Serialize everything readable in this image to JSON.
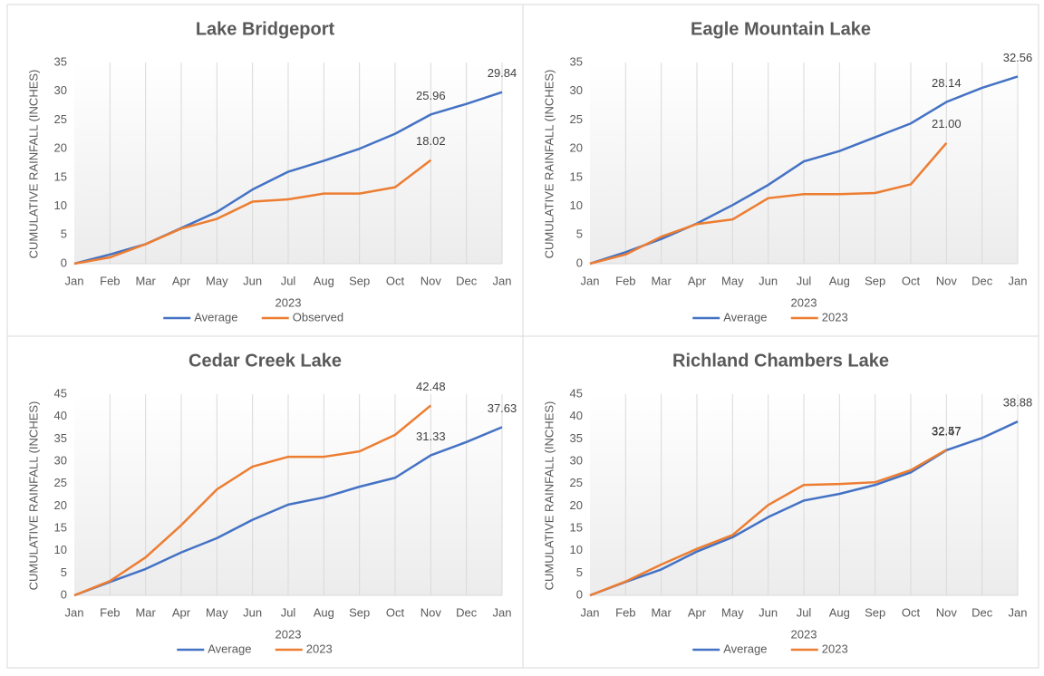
{
  "chart_data": [
    {
      "type": "line",
      "title": "Lake Bridgeport",
      "x_label": "2023",
      "y_label": "CUMULATIVE RAINFALL (INCHES)",
      "categories": [
        "Jan",
        "Feb",
        "Mar",
        "Apr",
        "May",
        "Jun",
        "Jul",
        "Aug",
        "Sep",
        "Oct",
        "Nov",
        "Dec",
        "Jan"
      ],
      "ylim": [
        0,
        35
      ],
      "yticks": [
        0,
        5,
        10,
        15,
        20,
        25,
        30,
        35
      ],
      "x_grid": true,
      "legend": "bottom",
      "series": [
        {
          "name": "Average",
          "color": "#4472c4",
          "values": [
            0,
            1.6,
            3.4,
            6.2,
            9.0,
            12.9,
            16.0,
            17.9,
            20.0,
            22.6,
            25.96,
            27.8,
            29.84
          ],
          "value_labels": [
            null,
            null,
            null,
            null,
            null,
            null,
            null,
            null,
            null,
            null,
            "25.96",
            null,
            "29.84"
          ]
        },
        {
          "name": "Observed",
          "color": "#ed7d31",
          "values": [
            0,
            1.1,
            3.4,
            6.1,
            7.8,
            10.8,
            11.2,
            12.2,
            12.2,
            13.3,
            18.02,
            null,
            null
          ],
          "value_labels": [
            null,
            null,
            null,
            null,
            null,
            null,
            null,
            null,
            null,
            null,
            "18.02",
            null,
            null
          ]
        }
      ]
    },
    {
      "type": "line",
      "title": "Eagle Mountain Lake",
      "x_label": "2023",
      "y_label": "CUMULATIVE RAINFALL (INCHES)",
      "categories": [
        "Jan",
        "Feb",
        "Mar",
        "Apr",
        "May",
        "Jun",
        "Jul",
        "Aug",
        "Sep",
        "Oct",
        "Nov",
        "Dec",
        "Jan"
      ],
      "ylim": [
        0,
        35
      ],
      "yticks": [
        0,
        5,
        10,
        15,
        20,
        25,
        30,
        35
      ],
      "x_grid": true,
      "legend": "bottom",
      "series": [
        {
          "name": "Average",
          "color": "#4472c4",
          "values": [
            0,
            2.0,
            4.3,
            7.0,
            10.2,
            13.7,
            17.8,
            19.6,
            22.0,
            24.4,
            28.14,
            30.6,
            32.56
          ],
          "value_labels": [
            null,
            null,
            null,
            null,
            null,
            null,
            null,
            null,
            null,
            null,
            "28.14",
            null,
            "32.56"
          ]
        },
        {
          "name": "2023",
          "color": "#ed7d31",
          "values": [
            0,
            1.6,
            4.7,
            6.9,
            7.7,
            11.4,
            12.1,
            12.1,
            12.3,
            13.8,
            21.0,
            null,
            null
          ],
          "value_labels": [
            null,
            null,
            null,
            null,
            null,
            null,
            null,
            null,
            null,
            null,
            "21.00",
            null,
            null
          ]
        }
      ]
    },
    {
      "type": "line",
      "title": "Cedar Creek Lake",
      "x_label": "2023",
      "y_label": "CUMULATIVE RAINFALL (INCHES)",
      "categories": [
        "Jan",
        "Feb",
        "Mar",
        "Apr",
        "May",
        "Jun",
        "Jul",
        "Aug",
        "Sep",
        "Oct",
        "Nov",
        "Dec",
        "Jan"
      ],
      "ylim": [
        0,
        45
      ],
      "yticks": [
        0,
        5,
        10,
        15,
        20,
        25,
        30,
        35,
        40,
        45
      ],
      "x_grid": true,
      "legend": "bottom",
      "series": [
        {
          "name": "Average",
          "color": "#4472c4",
          "values": [
            0,
            3.0,
            5.9,
            9.6,
            12.8,
            16.9,
            20.3,
            21.9,
            24.3,
            26.3,
            31.33,
            34.3,
            37.63
          ],
          "value_labels": [
            null,
            null,
            null,
            null,
            null,
            null,
            null,
            null,
            null,
            null,
            "31.33",
            null,
            "37.63"
          ]
        },
        {
          "name": "2023",
          "color": "#ed7d31",
          "values": [
            0,
            3.2,
            8.5,
            15.7,
            23.7,
            28.8,
            31.0,
            31.0,
            32.2,
            35.9,
            42.48,
            null,
            null
          ],
          "value_labels": [
            null,
            null,
            null,
            null,
            null,
            null,
            null,
            null,
            null,
            null,
            "42.48",
            null,
            null
          ]
        }
      ]
    },
    {
      "type": "line",
      "title": "Richland Chambers Lake",
      "x_label": "2023",
      "y_label": "CUMULATIVE RAINFALL (INCHES)",
      "categories": [
        "Jan",
        "Feb",
        "Mar",
        "Apr",
        "May",
        "Jun",
        "Jul",
        "Aug",
        "Sep",
        "Oct",
        "Nov",
        "Dec",
        "Jan"
      ],
      "ylim": [
        0,
        45
      ],
      "yticks": [
        0,
        5,
        10,
        15,
        20,
        25,
        30,
        35,
        40,
        45
      ],
      "x_grid": true,
      "legend": "bottom",
      "series": [
        {
          "name": "Average",
          "color": "#4472c4",
          "values": [
            0,
            3.0,
            5.8,
            9.8,
            13.0,
            17.5,
            21.2,
            22.7,
            24.7,
            27.5,
            32.47,
            35.2,
            38.88
          ],
          "value_labels": [
            null,
            null,
            null,
            null,
            null,
            null,
            null,
            null,
            null,
            null,
            "32.47",
            null,
            "38.88"
          ]
        },
        {
          "name": "2023",
          "color": "#ed7d31",
          "values": [
            0,
            3.1,
            6.9,
            10.4,
            13.5,
            20.2,
            24.7,
            24.9,
            25.3,
            28.0,
            32.57,
            null,
            null
          ],
          "value_labels": [
            null,
            null,
            null,
            null,
            null,
            null,
            null,
            null,
            null,
            null,
            "32.57",
            null,
            null
          ]
        }
      ]
    }
  ]
}
